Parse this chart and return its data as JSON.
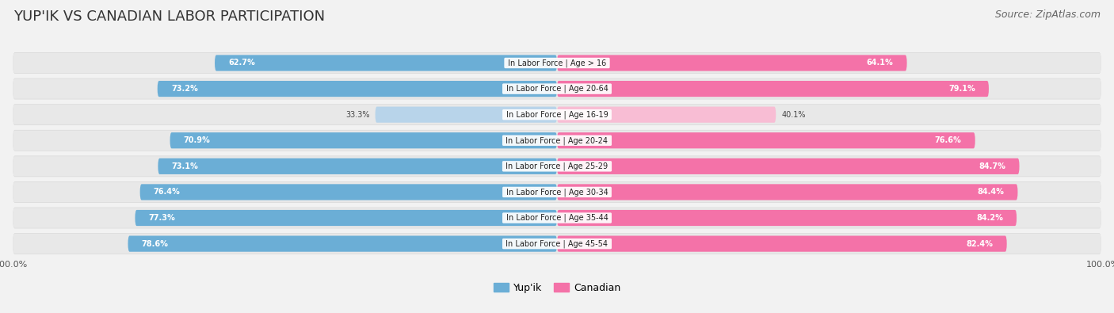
{
  "title": "YUP'IK VS CANADIAN LABOR PARTICIPATION",
  "source": "Source: ZipAtlas.com",
  "categories": [
    "In Labor Force | Age > 16",
    "In Labor Force | Age 20-64",
    "In Labor Force | Age 16-19",
    "In Labor Force | Age 20-24",
    "In Labor Force | Age 25-29",
    "In Labor Force | Age 30-34",
    "In Labor Force | Age 35-44",
    "In Labor Force | Age 45-54"
  ],
  "yupik_values": [
    62.7,
    73.2,
    33.3,
    70.9,
    73.1,
    76.4,
    77.3,
    78.6
  ],
  "canadian_values": [
    64.1,
    79.1,
    40.1,
    76.6,
    84.7,
    84.4,
    84.2,
    82.4
  ],
  "yupik_color": "#6baed6",
  "yupik_light_color": "#b8d4ea",
  "canadian_color": "#f472a8",
  "canadian_light_color": "#f8bdd4",
  "bg_color": "#f2f2f2",
  "row_bg_color": "#e0e0e0",
  "bar_height": 0.62,
  "max_value": 100.0,
  "legend_yupik": "Yup'ik",
  "legend_canadian": "Canadian",
  "title_fontsize": 13,
  "source_fontsize": 9,
  "label_fontsize": 7,
  "value_fontsize": 7
}
